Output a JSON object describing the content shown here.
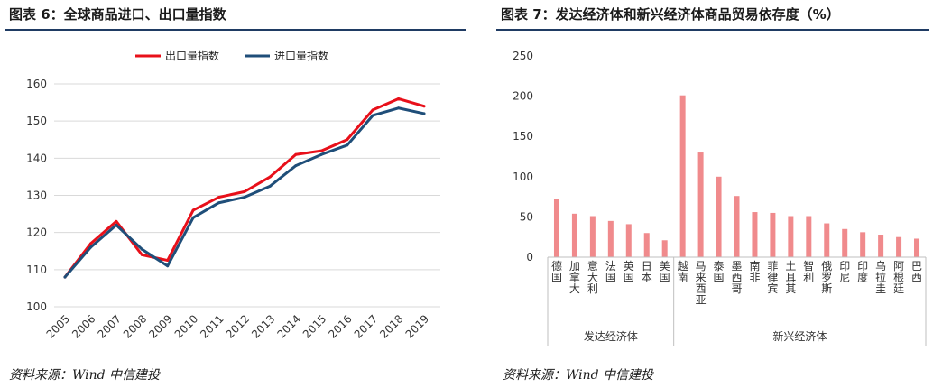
{
  "panel_left": {
    "title": "图表 6：全球商品进口、出口量指数",
    "source": "资料来源：Wind    中信建投"
  },
  "panel_right": {
    "title": "图表 7：发达经济体和新兴经济体商品贸易依存度（%）",
    "source": "资料来源：Wind    中信建投"
  },
  "colors": {
    "title_rule": "#1f3b63",
    "export_line": "#e8101a",
    "import_line": "#1f4e79",
    "bar": "#f08a8c",
    "grid": "#d9d9d9",
    "axis": "#bfbfbf"
  },
  "chart_data": [
    {
      "type": "line",
      "title": "",
      "x": [
        "2005",
        "2006",
        "2007",
        "2008",
        "2009",
        "2010",
        "2011",
        "2012",
        "2013",
        "2014",
        "2015",
        "2016",
        "2017",
        "2018",
        "2019"
      ],
      "series": [
        {
          "name": "出口量指数",
          "color_key": "export_line",
          "values": [
            108,
            117,
            123,
            114,
            112.5,
            126,
            129.5,
            131,
            135,
            141,
            142,
            145,
            153,
            156,
            154
          ]
        },
        {
          "name": "进口量指数",
          "color_key": "import_line",
          "values": [
            108,
            116,
            122,
            115.5,
            111,
            124,
            128,
            129.5,
            132.5,
            138,
            141,
            143.5,
            151.5,
            153.5,
            152
          ]
        }
      ],
      "ylim": [
        100,
        160
      ],
      "yticks": [
        100,
        110,
        120,
        130,
        140,
        150,
        160
      ],
      "grid": true,
      "legend": "top-center"
    },
    {
      "type": "bar",
      "title": "",
      "categories": [
        "德国",
        "加拿大",
        "意大利",
        "法国",
        "英国",
        "日本",
        "美国",
        "越南",
        "马来西亚",
        "泰国",
        "墨西哥",
        "南非",
        "菲律宾",
        "土耳其",
        "智利",
        "俄罗斯",
        "印尼",
        "印度",
        "乌拉圭",
        "阿根廷",
        "巴西"
      ],
      "values": [
        72,
        54,
        51,
        45,
        41,
        30,
        21,
        201,
        130,
        100,
        76,
        56,
        55,
        51,
        51,
        42,
        35,
        31,
        28,
        25,
        23
      ],
      "groups": [
        {
          "label": "发达经济体",
          "count": 7
        },
        {
          "label": "新兴经济体",
          "count": 14
        }
      ],
      "ylim": [
        0,
        250
      ],
      "yticks": [
        0,
        50,
        100,
        150,
        200,
        250
      ],
      "grid": false
    }
  ]
}
